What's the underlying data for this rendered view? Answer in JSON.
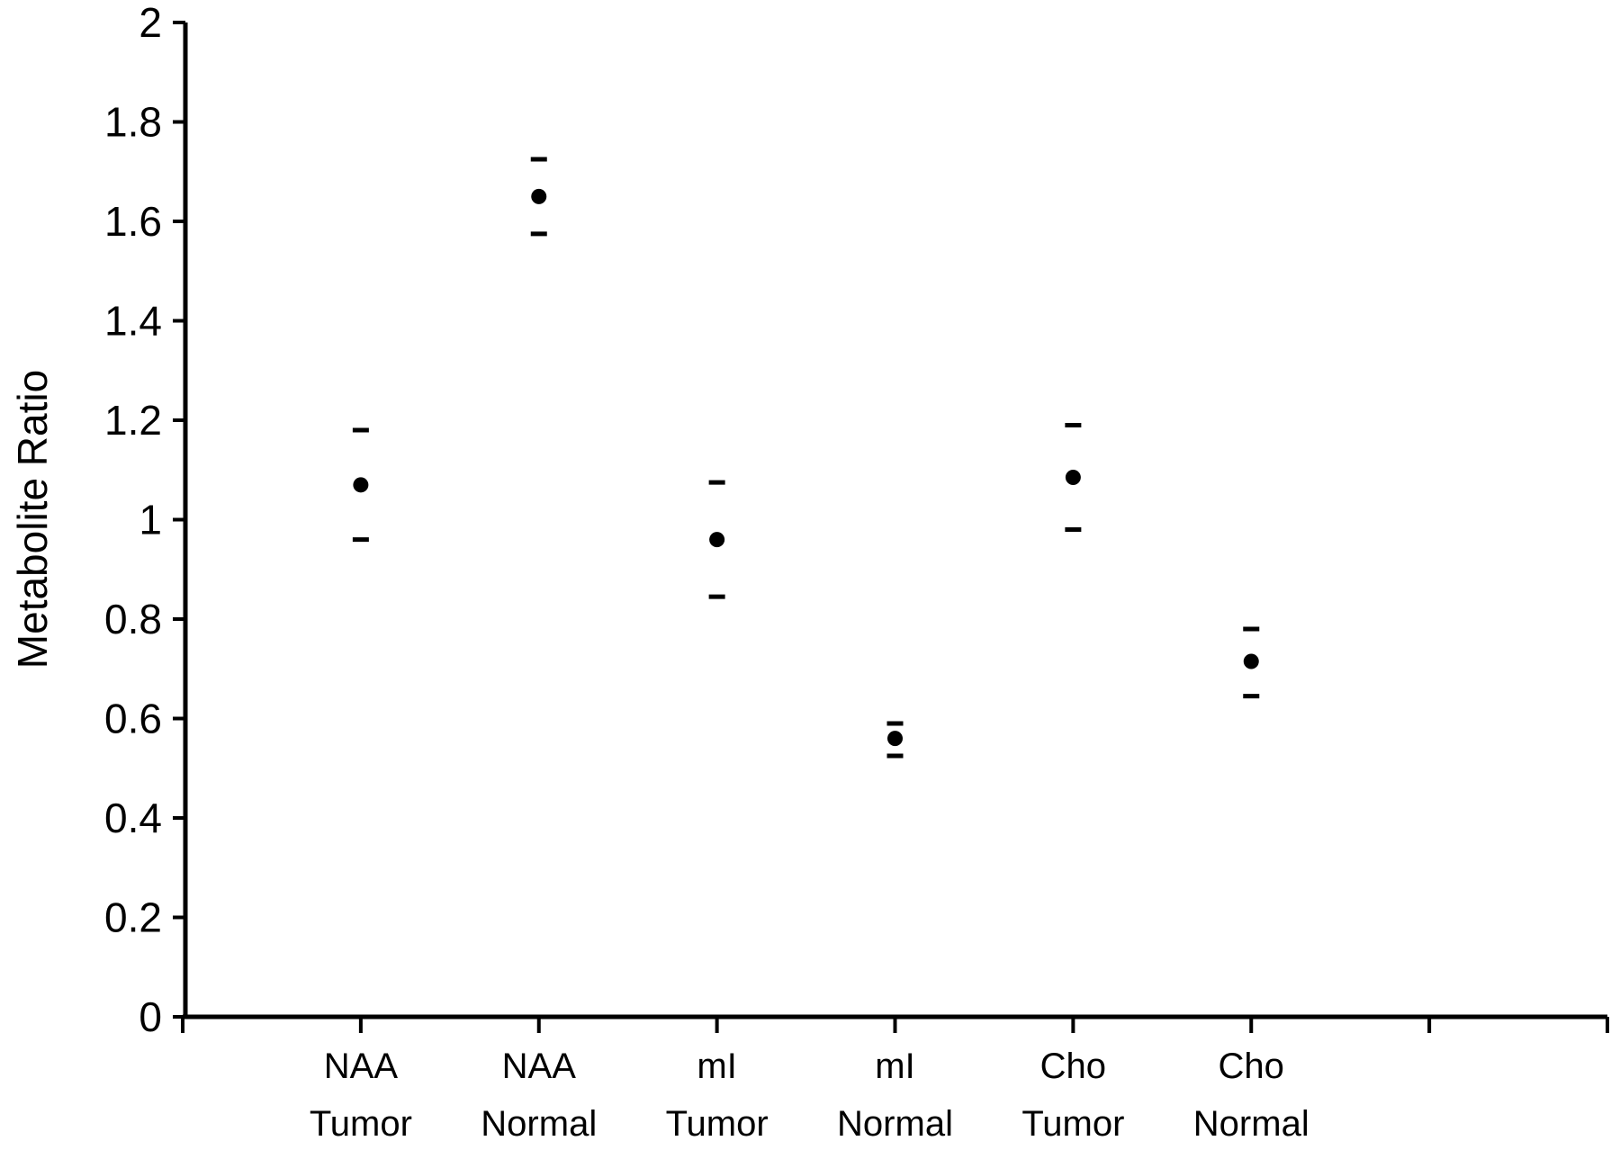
{
  "chart_data": {
    "type": "scatter",
    "title": "",
    "xlabel": "",
    "ylabel": "Metabolite Ratio",
    "ylim": [
      0,
      2
    ],
    "yticks": [
      0,
      0.2,
      0.4,
      0.6,
      0.8,
      1,
      1.2,
      1.4,
      1.6,
      1.8,
      2
    ],
    "ytick_labels": [
      "0",
      "0.2",
      "0.4",
      "0.6",
      "0.8",
      "1",
      "1.2",
      "1.4",
      "1.6",
      "1.8",
      "2"
    ],
    "grid": false,
    "legend": "none",
    "categories": [
      {
        "line1": "NAA",
        "line2": "Tumor"
      },
      {
        "line1": "NAA",
        "line2": "Normal"
      },
      {
        "line1": "mI",
        "line2": "Tumor"
      },
      {
        "line1": "mI",
        "line2": "Normal"
      },
      {
        "line1": "Cho",
        "line2": "Tumor"
      },
      {
        "line1": "Cho",
        "line2": "Normal"
      }
    ],
    "values": [
      1.07,
      1.65,
      0.96,
      0.56,
      1.085,
      0.715
    ],
    "upper": [
      1.18,
      1.725,
      1.075,
      0.59,
      1.19,
      0.78
    ],
    "lower": [
      0.96,
      1.575,
      0.845,
      0.525,
      0.98,
      0.645
    ],
    "colors": {
      "marker": "#000000",
      "axis": "#000000"
    }
  }
}
